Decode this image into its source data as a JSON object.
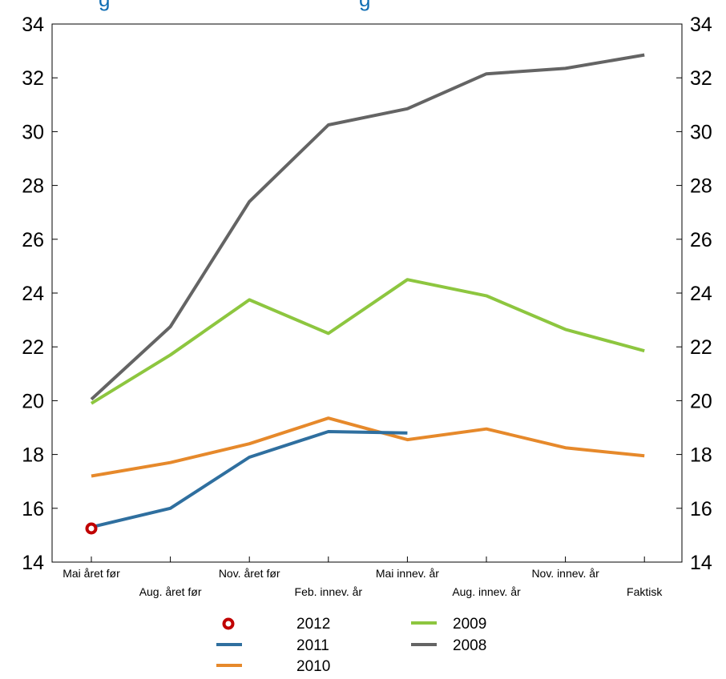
{
  "chart_data": {
    "type": "line",
    "title_fragments": [
      "g",
      "g"
    ],
    "categories": [
      "Mai året før",
      "Aug. året før",
      "Nov. året før",
      "Feb. innev. år",
      "Mai innev. år",
      "Aug. innev. år",
      "Nov. innev. år",
      "Faktisk"
    ],
    "ylim": [
      14,
      34
    ],
    "yticks": [
      "14",
      "16",
      "18",
      "20",
      "22",
      "24",
      "26",
      "28",
      "30",
      "32",
      "34"
    ],
    "secondary_y_axis": true,
    "grid": false,
    "legend_position": "bottom",
    "series": [
      {
        "name": "2012",
        "marker": "circle",
        "color": "#c00000",
        "values": [
          15.25,
          null,
          null,
          null,
          null,
          null,
          null,
          null
        ]
      },
      {
        "name": "2011",
        "color": "#2f6f9f",
        "values": [
          15.3,
          16.0,
          17.9,
          18.85,
          18.8,
          null,
          null,
          null
        ]
      },
      {
        "name": "2010",
        "color": "#e6892b",
        "values": [
          17.2,
          17.7,
          18.4,
          19.35,
          18.55,
          18.95,
          18.25,
          17.95
        ]
      },
      {
        "name": "2009",
        "color": "#8dc63f",
        "values": [
          19.9,
          21.7,
          23.75,
          22.5,
          24.5,
          23.9,
          22.65,
          21.85
        ]
      },
      {
        "name": "2008",
        "color": "#646464",
        "values": [
          20.05,
          22.75,
          27.4,
          30.25,
          30.85,
          32.15,
          32.35,
          32.85
        ]
      }
    ]
  }
}
